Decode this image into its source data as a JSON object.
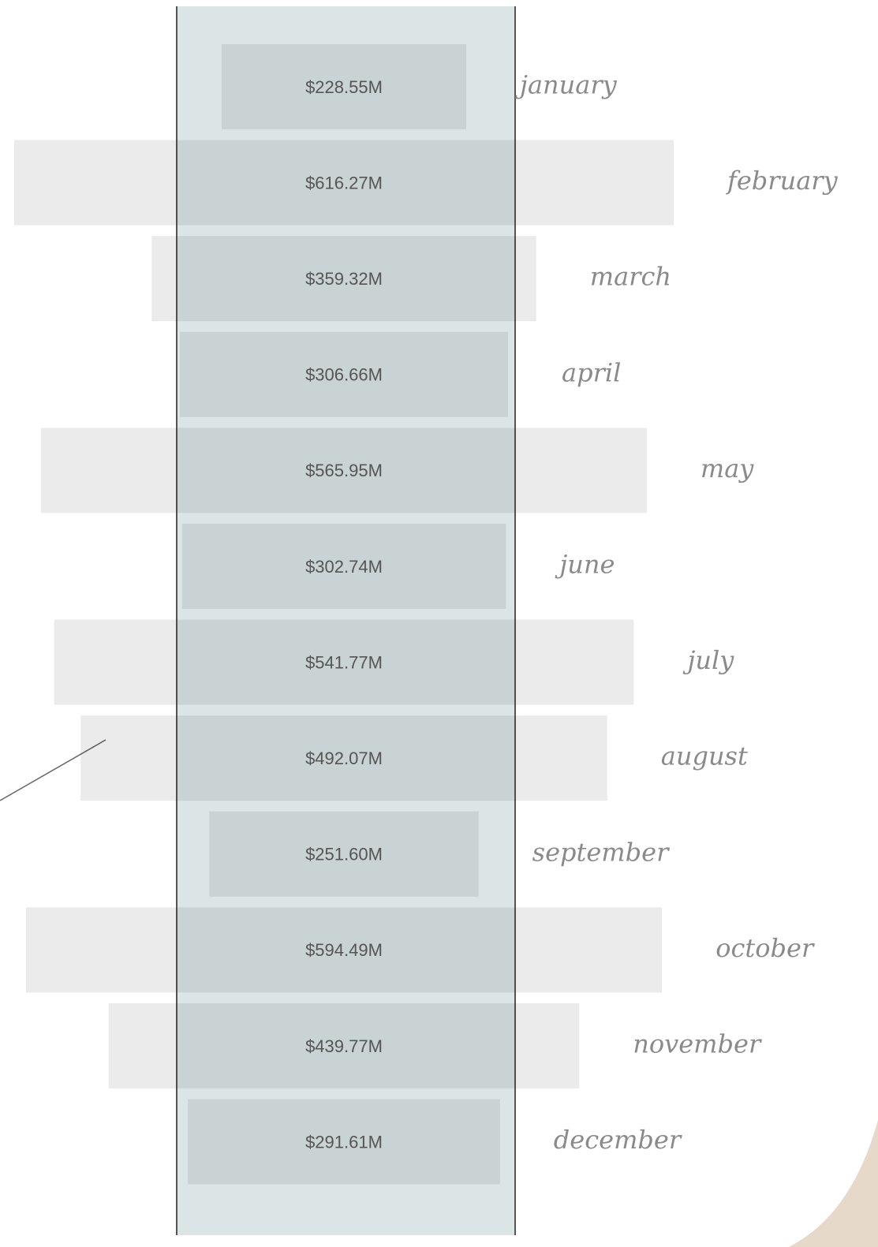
{
  "chart_data": {
    "type": "bar",
    "categories": [
      "january",
      "february",
      "march",
      "april",
      "may",
      "june",
      "july",
      "august",
      "september",
      "october",
      "november",
      "december"
    ],
    "values": [
      228.55,
      616.27,
      359.32,
      306.66,
      565.95,
      302.74,
      541.77,
      492.07,
      251.6,
      594.49,
      439.77,
      291.61
    ],
    "value_labels": [
      "$228.55M",
      "$616.27M",
      "$359.32M",
      "$306.66M",
      "$565.95M",
      "$302.74M",
      "$541.77M",
      "$492.07M",
      "$251.60M",
      "$594.49M",
      "$439.77M",
      "$291.61M"
    ]
  }
}
